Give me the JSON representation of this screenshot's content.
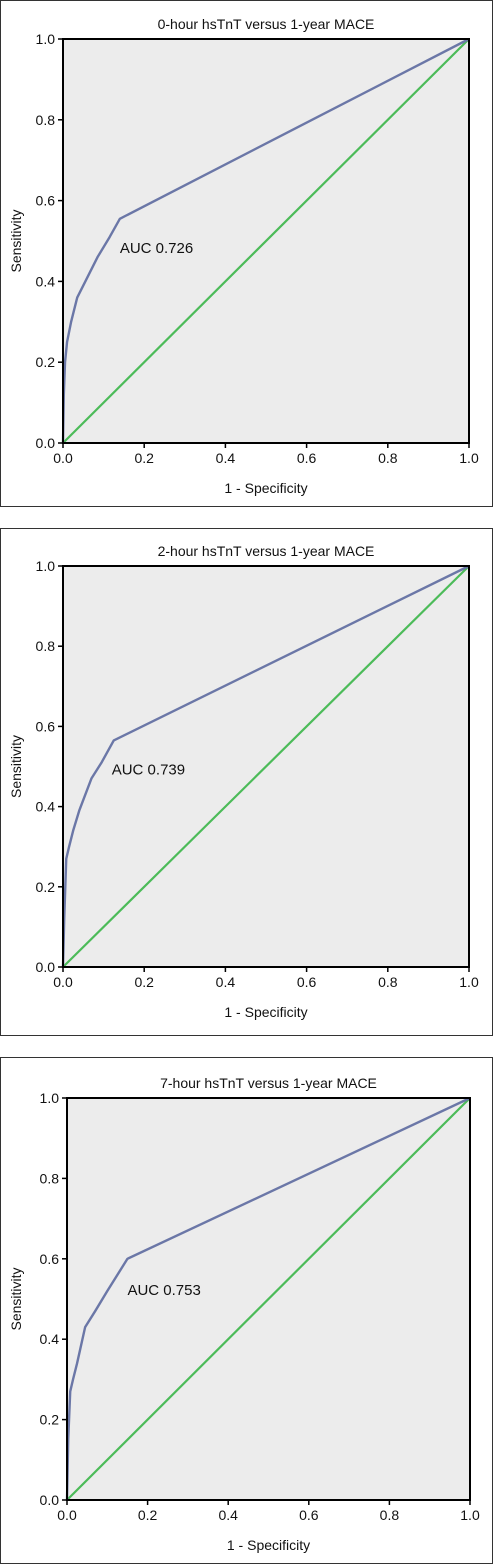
{
  "colors": {
    "plot_bg": "#ececec",
    "frame": "#000000",
    "roc_curve": "#6b77a7",
    "reference_line": "#4cbb59"
  },
  "chart_data": [
    {
      "type": "line",
      "title": "0-hour hsTnT versus 1-year MACE",
      "xlabel": "1 - Specificity",
      "ylabel": "Sensitivity",
      "xlim": [
        0,
        1
      ],
      "ylim": [
        0,
        1
      ],
      "xticks": [
        "0.0",
        "0.2",
        "0.4",
        "0.6",
        "0.8",
        "1.0"
      ],
      "yticks": [
        "0.0",
        "0.2",
        "0.4",
        "0.6",
        "0.8",
        "1.0"
      ],
      "grid": false,
      "annotation": {
        "text": "AUC 0.726",
        "x": 0.14,
        "y": 0.47
      },
      "series": [
        {
          "x": [
            0,
            0.002,
            0.005,
            0.01,
            0.02,
            0.035,
            0.055,
            0.085,
            0.115,
            0.14,
            1.0
          ],
          "y": [
            0,
            0.12,
            0.2,
            0.25,
            0.3,
            0.36,
            0.4,
            0.46,
            0.51,
            0.555,
            1.0
          ]
        },
        {
          "x": [
            0,
            1
          ],
          "y": [
            0,
            1
          ]
        }
      ]
    },
    {
      "type": "line",
      "title": "2-hour hsTnT versus 1-year MACE",
      "xlabel": "1 - Specificity",
      "ylabel": "Sensitivity",
      "xlim": [
        0,
        1
      ],
      "ylim": [
        0,
        1
      ],
      "xticks": [
        "0.0",
        "0.2",
        "0.4",
        "0.6",
        "0.8",
        "1.0"
      ],
      "yticks": [
        "0.0",
        "0.2",
        "0.4",
        "0.6",
        "0.8",
        "1.0"
      ],
      "grid": false,
      "annotation": {
        "text": "AUC 0.739",
        "x": 0.12,
        "y": 0.48
      },
      "series": [
        {
          "x": [
            0,
            0.003,
            0.008,
            0.015,
            0.025,
            0.04,
            0.07,
            0.095,
            0.125,
            1.0
          ],
          "y": [
            0,
            0.12,
            0.27,
            0.3,
            0.34,
            0.39,
            0.47,
            0.51,
            0.565,
            1.0
          ]
        },
        {
          "x": [
            0,
            1
          ],
          "y": [
            0,
            1
          ]
        }
      ]
    },
    {
      "type": "line",
      "title": "7-hour hsTnT versus 1-year MACE",
      "xlabel": "1 - Specificity",
      "ylabel": "Sensitivity",
      "xlim": [
        0,
        1
      ],
      "ylim": [
        0,
        1
      ],
      "xticks": [
        "0.0",
        "0.2",
        "0.4",
        "0.6",
        "0.8",
        "1.0"
      ],
      "yticks": [
        "0.0",
        "0.2",
        "0.4",
        "0.6",
        "0.8",
        "1.0"
      ],
      "grid": false,
      "annotation": {
        "text": "AUC 0.753",
        "x": 0.15,
        "y": 0.51
      },
      "series": [
        {
          "x": [
            0,
            0.003,
            0.008,
            0.015,
            0.025,
            0.045,
            0.07,
            0.1,
            0.15,
            1.0
          ],
          "y": [
            0,
            0.15,
            0.27,
            0.3,
            0.34,
            0.43,
            0.47,
            0.52,
            0.6,
            1.0
          ]
        },
        {
          "x": [
            0,
            1
          ],
          "y": [
            0,
            1
          ]
        }
      ]
    }
  ]
}
